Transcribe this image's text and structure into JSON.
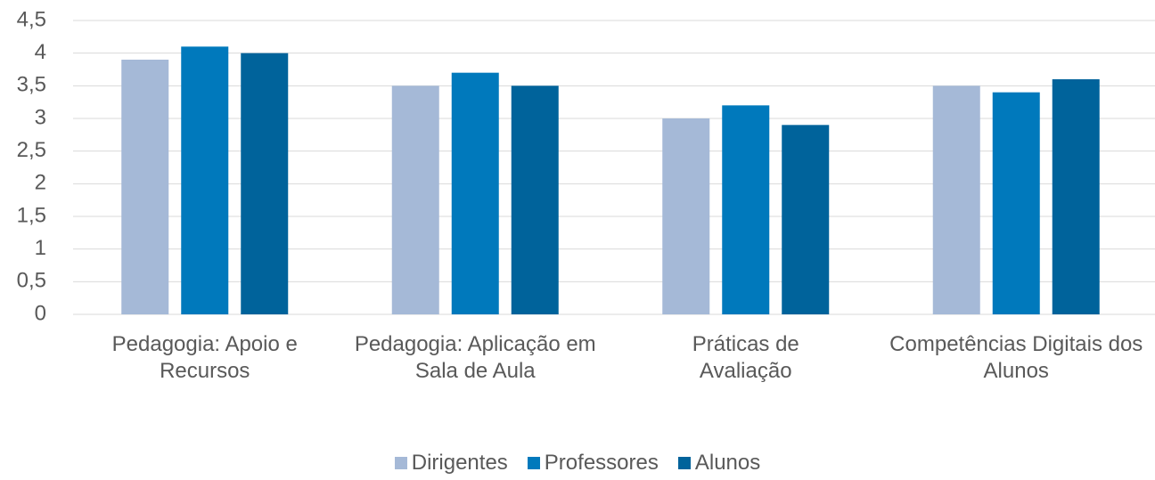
{
  "chart_data": {
    "type": "bar",
    "categories": [
      "Pedagogia: Apoio e Recursos",
      "Pedagogia: Aplicação em Sala de Aula",
      "Práticas de Avaliação",
      "Competências Digitais dos Alunos"
    ],
    "series": [
      {
        "name": "Dirigentes",
        "color": "#a5b9d7",
        "values": [
          3.9,
          3.5,
          3.0,
          3.5
        ]
      },
      {
        "name": "Professores",
        "color": "#0079bc",
        "values": [
          4.1,
          3.7,
          3.2,
          3.4
        ]
      },
      {
        "name": "Alunos",
        "color": "#00639b",
        "values": [
          4.0,
          3.5,
          2.9,
          3.6
        ]
      }
    ],
    "ylim": [
      0,
      4.5
    ],
    "yticks": [
      0,
      {
        "value": 0.5,
        "label": "0,5"
      },
      1,
      {
        "value": 1.5,
        "label": "1,5"
      },
      2,
      {
        "value": 2.5,
        "label": "2,5"
      },
      3,
      {
        "value": 3.5,
        "label": "3,5"
      },
      4,
      {
        "value": 4.5,
        "label": "4,5"
      }
    ],
    "grid": true,
    "legend": "bottom"
  }
}
